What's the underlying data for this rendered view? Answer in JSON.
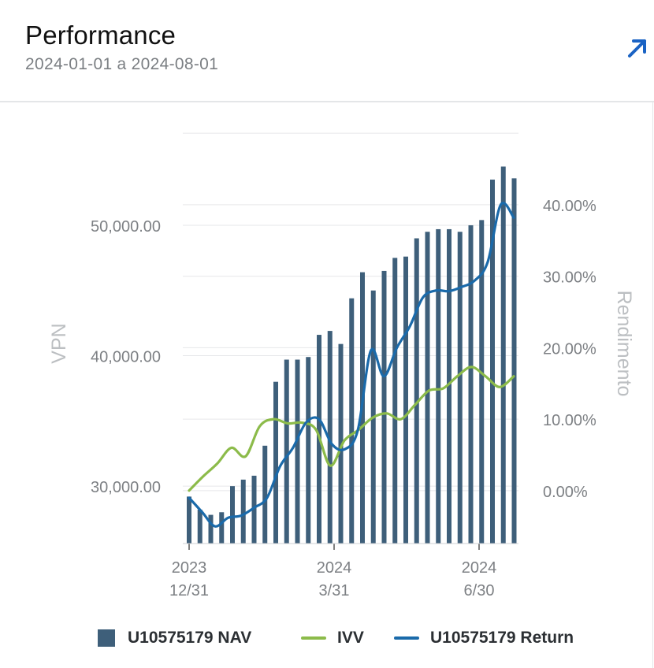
{
  "header": {
    "title": "Performance",
    "date_range": "2024-01-01 a 2024-08-01",
    "expand_icon": "arrow-up-right-icon"
  },
  "colors": {
    "nav": "#3e5f7a",
    "ivv": "#8cbb4a",
    "return": "#1a6aaa",
    "axis_text": "#7d8084",
    "grid": "#e6e7e9",
    "axis_title": "#bcbfc2",
    "expand_icon": "#1a63c4"
  },
  "chart_data": {
    "type": "bar+line",
    "left_axis": {
      "title": "VPN",
      "ticks": [
        "30,000.00",
        "40,000.00",
        "50,000.00"
      ],
      "tick_values": [
        30000,
        40000,
        50000
      ],
      "range": [
        25600,
        56400
      ]
    },
    "right_axis": {
      "title": "Rendimento",
      "ticks": [
        "0.00%",
        "10.00%",
        "20.00%",
        "30.00%",
        "40.00%"
      ],
      "tick_values": [
        0,
        10,
        20,
        30,
        40
      ],
      "range": [
        -7.4,
        48.8
      ]
    },
    "x_ticks": [
      {
        "year": "2023",
        "date": "12/31",
        "index": 0
      },
      {
        "year": "2024",
        "date": "3/31",
        "index": 16
      },
      {
        "year": "2024",
        "date": "6/30",
        "index": 33
      }
    ],
    "series": [
      {
        "name": "U10575179 NAV",
        "type": "bar",
        "axis": "left",
        "values": [
          29200,
          28200,
          27800,
          28000,
          30000,
          30500,
          30800,
          33100,
          38000,
          39700,
          39700,
          39900,
          41600,
          41900,
          40900,
          44400,
          46400,
          45000,
          46500,
          47500,
          47600,
          49000,
          49500,
          49700,
          49700,
          49500,
          50000,
          50400,
          53500,
          54500,
          53600
        ]
      },
      {
        "name": "IVV",
        "type": "line",
        "axis": "right",
        "values": [
          0.0,
          2.0,
          3.8,
          6.0,
          4.8,
          9.0,
          10.0,
          9.4,
          9.5,
          8.5,
          3.5,
          7.0,
          8.5,
          10.2,
          10.8,
          10.0,
          12.0,
          14.0,
          14.3,
          16.0,
          17.3,
          16.0,
          14.5,
          16.0
        ]
      },
      {
        "name": "U10575179 Return",
        "type": "line",
        "axis": "right",
        "values": [
          -1.0,
          -3.0,
          -5.0,
          -3.8,
          -3.5,
          -2.4,
          -1.0,
          3.4,
          6.0,
          9.5,
          10.0,
          6.5,
          5.8,
          8.5,
          19.6,
          16.0,
          20.0,
          23.0,
          27.0,
          28.0,
          27.9,
          28.5,
          29.4,
          32.0,
          40.0,
          38.2
        ]
      }
    ]
  },
  "legend": [
    {
      "label": "U10575179 NAV",
      "kind": "box",
      "color_key": "nav"
    },
    {
      "label": "IVV",
      "kind": "line",
      "color_key": "ivv"
    },
    {
      "label": "U10575179 Return",
      "kind": "line",
      "color_key": "return"
    }
  ]
}
